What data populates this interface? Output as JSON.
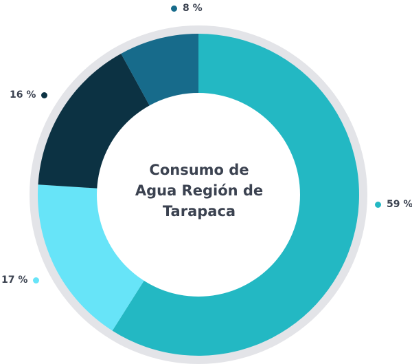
{
  "chart_data": {
    "type": "pie",
    "variant": "donut",
    "title": [
      "Consumo de",
      "Agua Región de",
      "Tarapaca"
    ],
    "slices": [
      {
        "label": "59 %",
        "value": 59,
        "color": "#23b8c3"
      },
      {
        "label": "17 %",
        "value": 17,
        "color": "#67e4f8"
      },
      {
        "label": "16 %",
        "value": 16,
        "color": "#0c3243"
      },
      {
        "label": "8 %",
        "value": 8,
        "color": "#176b8b"
      }
    ],
    "ring_color": "#e3e4e8",
    "legend": "labels around ring"
  }
}
